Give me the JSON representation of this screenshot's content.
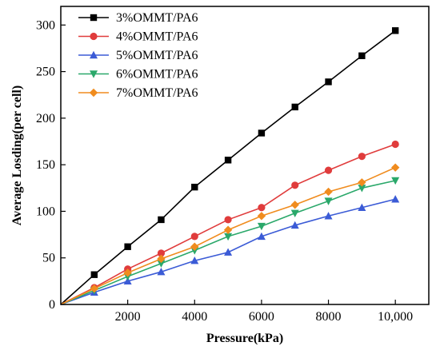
{
  "chart_data": {
    "type": "line",
    "xlabel": "Pressure(kPa)",
    "ylabel": "Average Losding(per cell)",
    "xlim": [
      0,
      11000
    ],
    "ylim": [
      0,
      320
    ],
    "x_ticks": [
      {
        "value": 2000,
        "label": "2000"
      },
      {
        "value": 4000,
        "label": "4000"
      },
      {
        "value": 6000,
        "label": "6000"
      },
      {
        "value": 8000,
        "label": "8000"
      },
      {
        "value": 10000,
        "label": "10,000"
      }
    ],
    "y_ticks": [
      {
        "value": 0,
        "label": "0"
      },
      {
        "value": 50,
        "label": "50"
      },
      {
        "value": 100,
        "label": "100"
      },
      {
        "value": 150,
        "label": "150"
      },
      {
        "value": 200,
        "label": "200"
      },
      {
        "value": 250,
        "label": "250"
      },
      {
        "value": 300,
        "label": "300"
      }
    ],
    "grid": false,
    "legend_position": "top-left",
    "x": [
      0,
      1000,
      2000,
      3000,
      4000,
      5000,
      6000,
      7000,
      8000,
      9000,
      10000
    ],
    "series": [
      {
        "name": "3%OMMT/PA6",
        "color": "#000000",
        "marker": "square",
        "values": [
          0,
          32,
          62,
          91,
          126,
          155,
          184,
          212,
          239,
          267,
          294
        ]
      },
      {
        "name": "4%OMMT/PA6",
        "color": "#e03c3c",
        "marker": "circle",
        "values": [
          0,
          18,
          38,
          55,
          73,
          91,
          104,
          128,
          144,
          159,
          172
        ]
      },
      {
        "name": "5%OMMT/PA6",
        "color": "#3b5bd6",
        "marker": "triangle-up",
        "values": [
          0,
          13,
          25,
          35,
          47,
          56,
          73,
          85,
          95,
          104,
          113
        ]
      },
      {
        "name": "6%OMMT/PA6",
        "color": "#2aa86a",
        "marker": "triangle-down",
        "values": [
          0,
          15,
          30,
          44,
          58,
          73,
          84,
          98,
          111,
          125,
          133
        ]
      },
      {
        "name": "7%OMMT/PA6",
        "color": "#f08c1e",
        "marker": "diamond",
        "values": [
          0,
          17,
          34,
          49,
          62,
          80,
          95,
          107,
          121,
          131,
          147
        ]
      }
    ]
  }
}
